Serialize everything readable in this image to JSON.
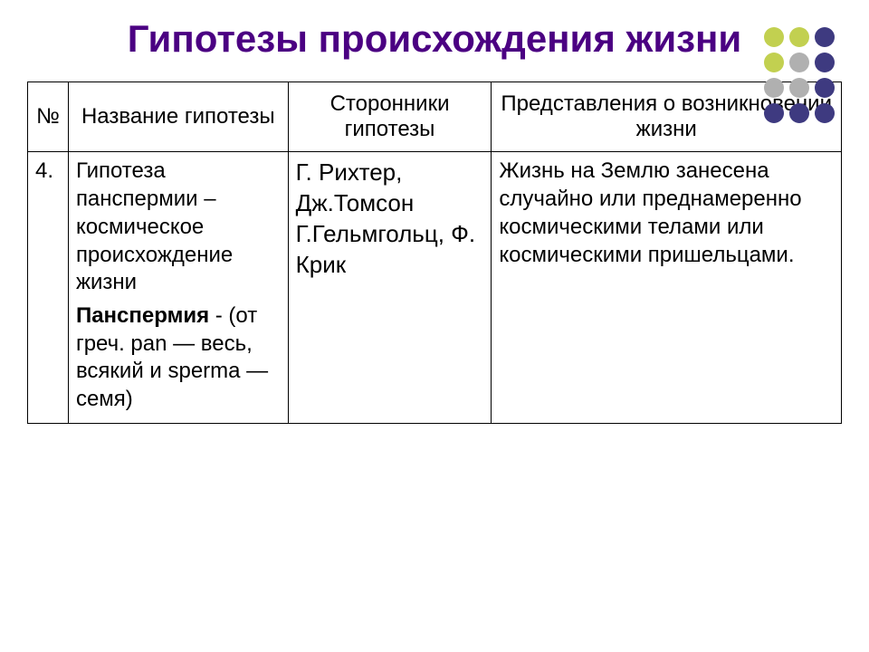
{
  "title": "Гипотезы происхождения жизни",
  "title_color": "#4b0082",
  "title_fontsize": 42,
  "dot_grid": {
    "rows": 4,
    "cols": 3,
    "colors": [
      "#c2d050",
      "#c2d050",
      "#3e3a80",
      "#c2d050",
      "#b0b0b0",
      "#3e3a80",
      "#b0b0b0",
      "#b0b0b0",
      "#3e3a80",
      "#3e3a80",
      "#3e3a80",
      "#3e3a80"
    ]
  },
  "table": {
    "border_color": "#000000",
    "header_fontsize": 24,
    "body_fontsize": 24,
    "col_widths_pct": [
      5,
      27,
      25,
      43
    ],
    "headers": [
      "№",
      "Название гипотезы",
      "Сторонники гипотезы",
      "Представления о возникновении жизни"
    ],
    "row": {
      "num": "4.",
      "name_part1": "Гипотеза панспермии – космическое происхождение жизни",
      "name_bold": "Панспермия",
      "name_part2": " - (от греч. pan — весь, всякий и sperma — семя)",
      "supporters_fontsize": 26,
      "supporters": "Г. Рихтер, Дж.Томсон Г.Гельмгольц, Ф. Крик",
      "ideas": "Жизнь на Землю занесена случайно или преднамеренно космическими телами или космическими пришельцами."
    }
  }
}
